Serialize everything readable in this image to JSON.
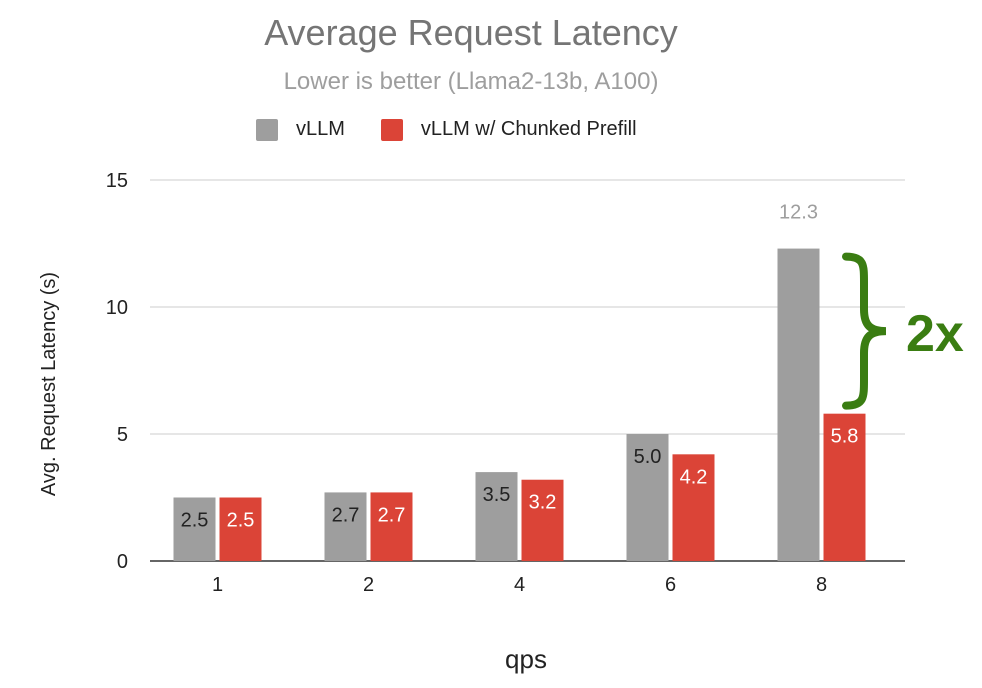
{
  "chart_data": {
    "type": "bar",
    "title": "Average Request Latency",
    "subtitle": "Lower is better  (Llama2-13b, A100)",
    "xlabel": "qps",
    "ylabel": "Avg. Request Latency (s)",
    "categories": [
      "1",
      "2",
      "4",
      "6",
      "8"
    ],
    "series": [
      {
        "name": "vLLM",
        "color": "#9e9e9e",
        "values": [
          2.5,
          2.7,
          3.5,
          5.0,
          12.3
        ],
        "labels": [
          "2.5",
          "2.7",
          "3.5",
          "5.0",
          "12.3"
        ]
      },
      {
        "name": "vLLM w/ Chunked Prefill",
        "color": "#db4437",
        "values": [
          2.5,
          2.7,
          3.2,
          4.2,
          5.8
        ],
        "labels": [
          "2.5",
          "2.7",
          "3.2",
          "4.2",
          "5.8"
        ]
      }
    ],
    "ylim": [
      0,
      15
    ],
    "yticks": [
      0,
      5,
      10,
      15
    ],
    "grid": true,
    "legend": "top",
    "annotation": {
      "text": "2x",
      "color": "#3a7d12"
    }
  }
}
